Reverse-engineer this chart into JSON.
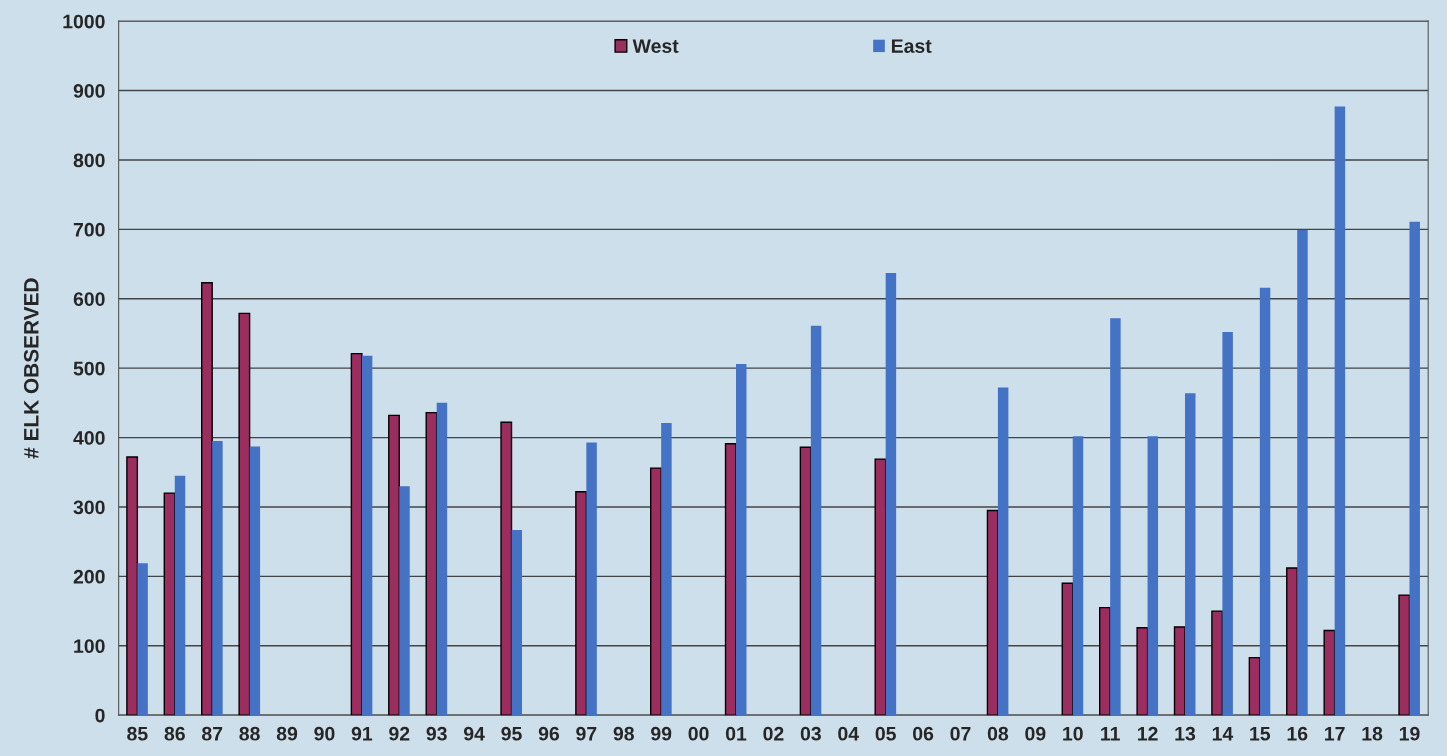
{
  "chart_data": {
    "type": "bar",
    "ylabel": "# ELK OBSERVED",
    "categories": [
      "85",
      "86",
      "87",
      "88",
      "89",
      "90",
      "91",
      "92",
      "93",
      "94",
      "95",
      "96",
      "97",
      "98",
      "99",
      "00",
      "01",
      "02",
      "03",
      "04",
      "05",
      "06",
      "07",
      "08",
      "09",
      "10",
      "11",
      "12",
      "13",
      "14",
      "15",
      "16",
      "17",
      "18",
      "19"
    ],
    "series": [
      {
        "name": "West",
        "color": "#9b2d5f",
        "values": [
          372,
          320,
          623,
          579,
          null,
          null,
          521,
          432,
          436,
          null,
          422,
          null,
          322,
          null,
          356,
          null,
          391,
          null,
          386,
          null,
          369,
          null,
          null,
          295,
          null,
          190,
          155,
          126,
          127,
          150,
          83,
          212,
          122,
          null,
          173
        ]
      },
      {
        "name": "East",
        "color": "#4472c4",
        "values": [
          219,
          345,
          395,
          387,
          null,
          null,
          518,
          330,
          450,
          null,
          267,
          null,
          393,
          null,
          421,
          null,
          506,
          null,
          561,
          null,
          637,
          null,
          null,
          472,
          null,
          402,
          572,
          402,
          464,
          552,
          616,
          699,
          877,
          null,
          711
        ]
      }
    ],
    "ylim": [
      0,
      1000
    ],
    "yticks": [
      0,
      100,
      200,
      300,
      400,
      500,
      600,
      700,
      800,
      900,
      1000
    ],
    "grid": "y",
    "legend": "top"
  }
}
